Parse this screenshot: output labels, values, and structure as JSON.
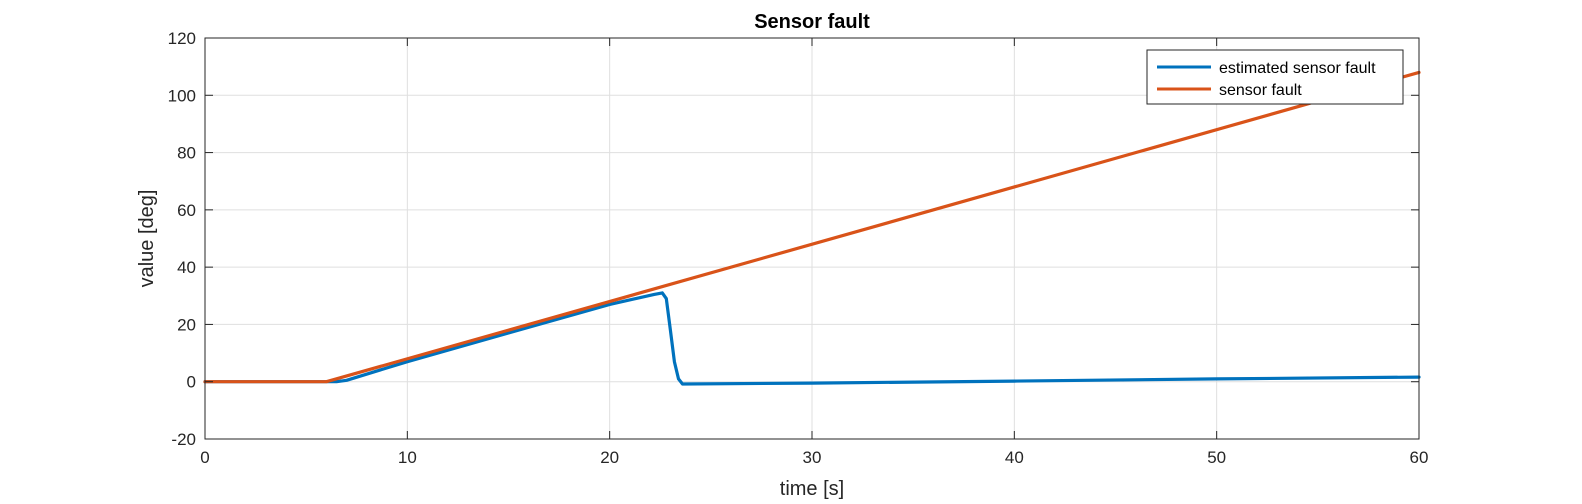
{
  "chart_data": {
    "type": "line",
    "title": "Sensor fault",
    "xlabel": "time [s]",
    "ylabel": "value [deg]",
    "xlim": [
      0,
      60
    ],
    "ylim": [
      -20,
      120
    ],
    "xticks": [
      0,
      10,
      20,
      30,
      40,
      50,
      60
    ],
    "yticks": [
      -20,
      0,
      20,
      40,
      60,
      80,
      100,
      120
    ],
    "grid": true,
    "legend_position": "top-right",
    "series": [
      {
        "name": "estimated sensor fault",
        "color": "#0072BD",
        "x": [
          0,
          6,
          6.5,
          7,
          10,
          15,
          20,
          22.2,
          22.6,
          22.8,
          23.0,
          23.2,
          23.4,
          23.6,
          30,
          40,
          50,
          60
        ],
        "y": [
          0,
          0,
          0,
          0.5,
          7,
          17,
          27,
          30.5,
          31,
          29,
          18,
          7,
          1,
          -0.8,
          -0.5,
          0.2,
          1,
          1.6
        ]
      },
      {
        "name": "sensor fault",
        "color": "#D95319",
        "x": [
          0,
          6,
          60
        ],
        "y": [
          0,
          0,
          108
        ]
      }
    ]
  }
}
